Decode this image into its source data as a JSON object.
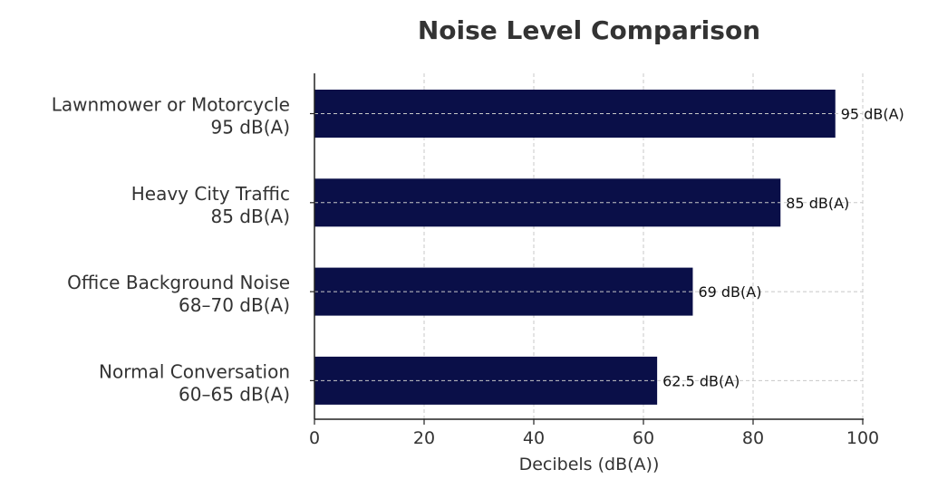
{
  "chart_data": {
    "type": "bar",
    "orientation": "horizontal",
    "title": "Noise Level Comparison",
    "xlabel": "Decibels (dB(A))",
    "ylabel": "",
    "xlim": [
      0,
      100
    ],
    "xticks": [
      "0",
      "20",
      "40",
      "60",
      "80",
      "100"
    ],
    "grid": true,
    "categories": [
      [
        "Lawnmower or Motorcycle",
        "95 dB(A)"
      ],
      [
        "Heavy City Traffic",
        "85 dB(A)"
      ],
      [
        "Office Background Noise",
        "68–70 dB(A)"
      ],
      [
        "Normal Conversation",
        "60–65 dB(A)"
      ]
    ],
    "values": [
      95,
      85,
      69,
      62.5
    ],
    "data_labels": [
      "95 dB(A)",
      "85 dB(A)",
      "69 dB(A)",
      "62.5 dB(A)"
    ],
    "bar_color": "#0a0f48"
  }
}
